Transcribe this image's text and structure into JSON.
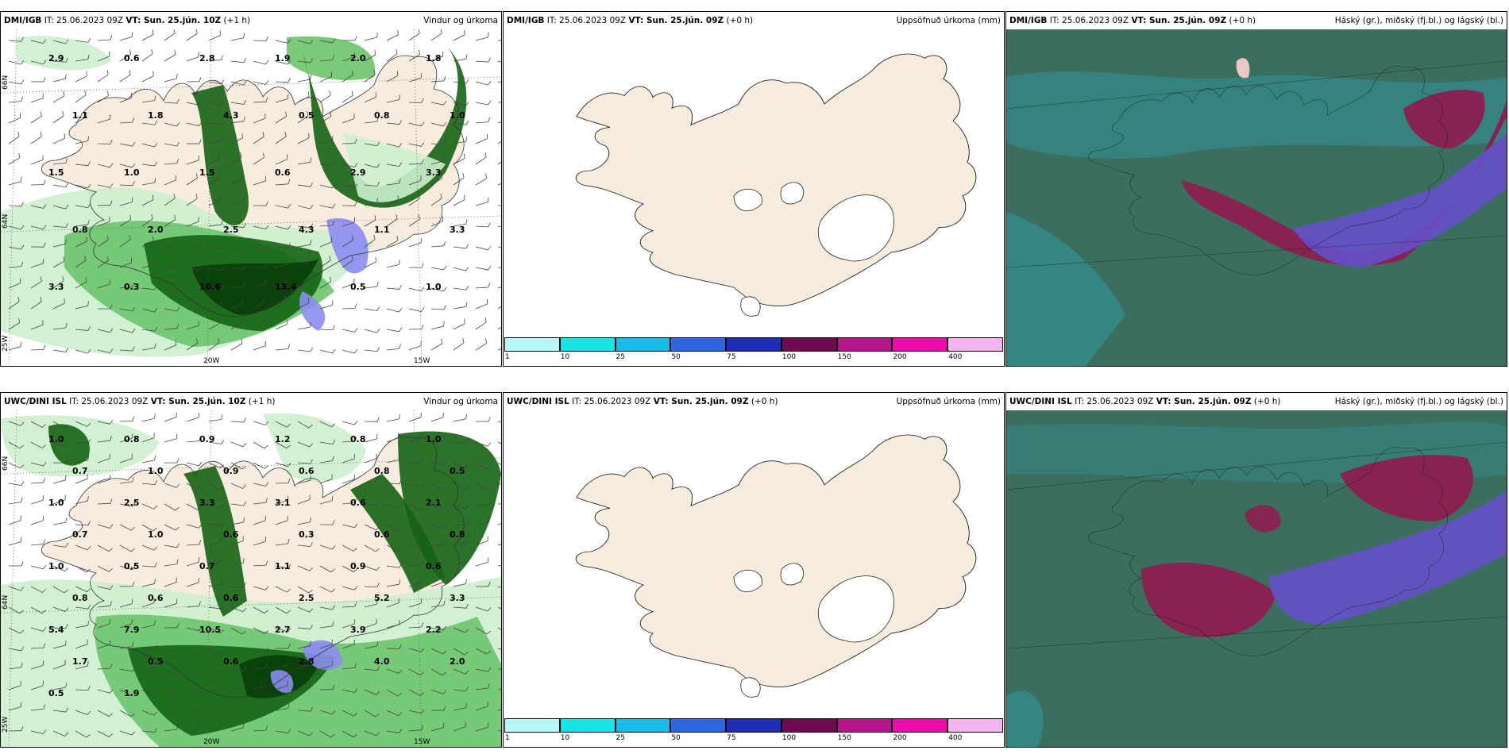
{
  "rows": [
    {
      "wind_panel": {
        "model": "DMI/IGB",
        "it": "IT: 25.06.2023 09Z",
        "vt": "VT: Sun. 25.jún. 10Z",
        "lead": "(+1 h)",
        "product": "Vindur og úrkoma"
      },
      "accum_panel": {
        "model": "DMI/IGB",
        "it": "IT: 25.06.2023 09Z",
        "vt": "VT: Sun. 25.jún. 09Z",
        "lead": "(+0 h)",
        "product": "Uppsöfnuð úrkoma (mm)"
      },
      "cloud_panel": {
        "model": "DMI/IGB",
        "it": "IT: 25.06.2023 09Z",
        "vt": "VT: Sun. 25.jún. 09Z",
        "lead": "(+0 h)",
        "product": "Háský (gr.), miðský (fj.bl.) og lágský (bl.)"
      },
      "precip_labels": [
        "2.9",
        "0.6",
        "2.8",
        "1.9",
        "2.0",
        "1.8",
        "1.1",
        "1.8",
        "4.3",
        "0.5",
        "0.8",
        "1.0",
        "1.5",
        "1.0",
        "1.5",
        "0.6",
        "2.9",
        "3.3",
        "0.8",
        "2.0",
        "2.5",
        "4.3",
        "1.1",
        "3.3",
        "3.3",
        "0.3",
        "16.6",
        "13.4",
        "0.5",
        "1.0"
      ]
    },
    {
      "wind_panel": {
        "model": "UWC/DINI ISL",
        "it": "IT: 25.06.2023 09Z",
        "vt": "VT: Sun. 25.jún. 10Z",
        "lead": "(+1 h)",
        "product": "Vindur og úrkoma"
      },
      "accum_panel": {
        "model": "UWC/DINI ISL",
        "it": "IT: 25.06.2023 09Z",
        "vt": "VT: Sun. 25.jún. 09Z",
        "lead": "(+0 h)",
        "product": "Uppsöfnuð úrkoma (mm)"
      },
      "cloud_panel": {
        "model": "UWC/DINI ISL",
        "it": "IT: 25.06.2023 09Z",
        "vt": "VT: Sun. 25.jún. 09Z",
        "lead": "(+0 h)",
        "product": "Háský (gr.), miðský (fj.bl.) og lágský (bl.)"
      },
      "precip_labels": [
        "1.0",
        "0.8",
        "0.9",
        "1.2",
        "0.8",
        "1.0",
        "0.7",
        "1.0",
        "0.9",
        "0.6",
        "0.8",
        "0.5",
        "1.0",
        "2.5",
        "3.3",
        "3.1",
        "0.6",
        "2.1",
        "0.7",
        "1.0",
        "0.6",
        "0.3",
        "0.6",
        "0.8",
        "1.0",
        "0.5",
        "0.7",
        "1.1",
        "0.9",
        "0.6",
        "0.8",
        "0.6",
        "0.6",
        "2.5",
        "5.2",
        "3.3",
        "5.4",
        "7.9",
        "10.5",
        "2.7",
        "3.9",
        "2.2",
        "1.7",
        "0.5",
        "0.6",
        "2.8",
        "4.0",
        "2.0",
        "0.5",
        "1.9"
      ]
    }
  ],
  "axes": {
    "lat_top": "66N",
    "lat_mid": "64N",
    "lon_left": "25W",
    "lon_1": "20W",
    "lon_2": "15W"
  },
  "colorbar": {
    "ticks": [
      "1",
      "10",
      "25",
      "50",
      "75",
      "100",
      "150",
      "200",
      "400"
    ],
    "colors": [
      "#b8f7f7",
      "#14e6e6",
      "#14bce6",
      "#2e64e6",
      "#1e2eb4",
      "#6e0a50",
      "#b4148c",
      "#f00aaa",
      "#f4b4f0"
    ]
  },
  "colors": {
    "land": "#f8ecde",
    "precip_light": "#cdf0cd",
    "precip_mid": "#6cc46c",
    "precip_dark": "#146414",
    "precip_vdark": "#0a3c0a",
    "precip_purple": "#8c8cf0",
    "cloud_base": "#3c6e5f",
    "cloud_teal": "#328c8c",
    "cloud_high": "#8c1e50",
    "cloud_mid": "#6450c8"
  }
}
